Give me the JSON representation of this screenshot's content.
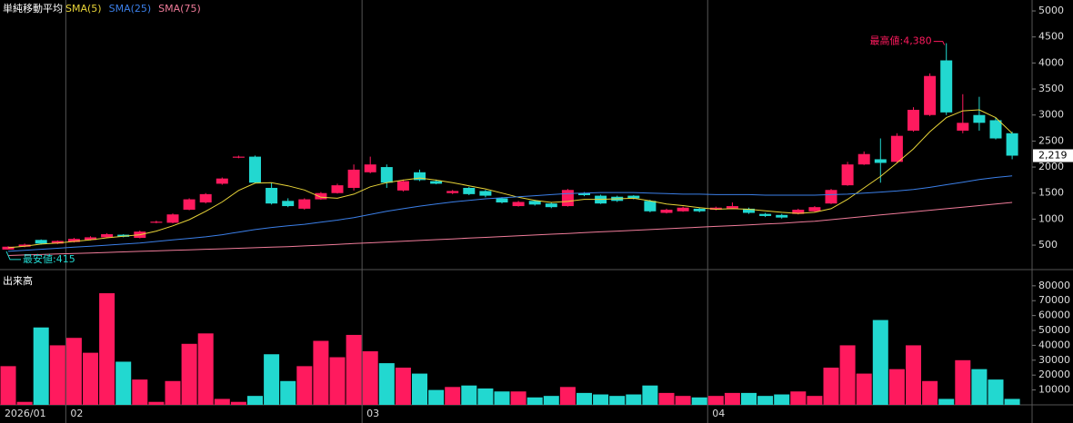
{
  "chart_data": {
    "type": "candlestick",
    "title": "単純移動平均",
    "categories": [
      "2026/01",
      null,
      null,
      null,
      "02",
      null,
      null,
      null,
      null,
      null,
      null,
      null,
      null,
      null,
      null,
      null,
      null,
      null,
      null,
      null,
      null,
      null,
      "03",
      null,
      null,
      null,
      null,
      null,
      null,
      null,
      null,
      null,
      null,
      null,
      null,
      null,
      null,
      null,
      null,
      null,
      null,
      null,
      null,
      "04",
      null,
      null,
      null,
      null,
      null,
      null,
      null,
      null,
      null,
      null,
      null,
      null,
      null,
      null,
      null,
      null,
      null,
      null
    ],
    "open": [
      415,
      470,
      600,
      530,
      560,
      600,
      650,
      700,
      640,
      930,
      930,
      1180,
      1320,
      1680,
      2180,
      2200,
      1600,
      1350,
      1200,
      1380,
      1500,
      1600,
      1900,
      2000,
      1550,
      1900,
      1730,
      1500,
      1600,
      1540,
      1400,
      1250,
      1350,
      1300,
      1250,
      1500,
      1450,
      1430,
      1450,
      1350,
      1120,
      1150,
      1200,
      1180,
      1200,
      1200,
      1100,
      1080,
      1100,
      1150,
      1300,
      1650,
      2050,
      2150,
      2100,
      2700,
      3000,
      4050,
      2700,
      3000,
      2900,
      2650
    ],
    "high": [
      480,
      530,
      610,
      590,
      640,
      670,
      730,
      710,
      780,
      970,
      1110,
      1400,
      1500,
      1800,
      2220,
      2220,
      1700,
      1400,
      1400,
      1520,
      1680,
      2050,
      2200,
      2050,
      1760,
      1950,
      1760,
      1560,
      1620,
      1560,
      1420,
      1350,
      1370,
      1320,
      1580,
      1520,
      1470,
      1450,
      1460,
      1370,
      1200,
      1240,
      1220,
      1240,
      1320,
      1220,
      1120,
      1100,
      1200,
      1250,
      1580,
      2100,
      2300,
      2550,
      2650,
      3150,
      3800,
      4380,
      3400,
      3350,
      2950,
      2680
    ],
    "low": [
      415,
      460,
      510,
      520,
      550,
      590,
      640,
      650,
      630,
      920,
      920,
      1170,
      1300,
      1660,
      2170,
      1690,
      1280,
      1230,
      1180,
      1370,
      1490,
      1550,
      1880,
      1600,
      1530,
      1730,
      1670,
      1480,
      1460,
      1420,
      1300,
      1240,
      1260,
      1210,
      1240,
      1440,
      1290,
      1330,
      1380,
      1130,
      1110,
      1140,
      1130,
      1170,
      1190,
      1100,
      1040,
      1010,
      1090,
      1140,
      1290,
      1640,
      2040,
      1700,
      2090,
      2680,
      2980,
      3000,
      2650,
      2700,
      2530,
      2150
    ],
    "close": [
      470,
      510,
      530,
      580,
      620,
      650,
      710,
      660,
      760,
      950,
      1090,
      1380,
      1480,
      1780,
      2200,
      1700,
      1300,
      1250,
      1380,
      1500,
      1650,
      1950,
      2050,
      1700,
      1730,
      1750,
      1680,
      1540,
      1480,
      1450,
      1320,
      1330,
      1280,
      1230,
      1560,
      1460,
      1300,
      1350,
      1400,
      1150,
      1180,
      1220,
      1150,
      1220,
      1250,
      1120,
      1060,
      1030,
      1180,
      1230,
      1560,
      2050,
      2250,
      2080,
      2600,
      3100,
      3750,
      3050,
      2850,
      2850,
      2550,
      2219
    ],
    "up_color": "#ff1a5e",
    "down_color": "#22d8d0",
    "ylim": [
      30,
      5210
    ],
    "yticks": [
      500,
      1000,
      1500,
      2000,
      2500,
      3000,
      3500,
      4000,
      4500,
      5000
    ],
    "series": [
      {
        "name": "SMA(5)",
        "color": "#e8d438",
        "values": [
          450,
          480,
          520,
          540,
          570,
          600,
          640,
          670,
          700,
          770,
          870,
          990,
          1150,
          1330,
          1550,
          1690,
          1700,
          1640,
          1560,
          1420,
          1400,
          1480,
          1620,
          1700,
          1750,
          1790,
          1750,
          1700,
          1640,
          1580,
          1500,
          1420,
          1360,
          1320,
          1340,
          1380,
          1380,
          1390,
          1400,
          1350,
          1290,
          1260,
          1220,
          1190,
          1200,
          1190,
          1160,
          1130,
          1110,
          1130,
          1200,
          1380,
          1600,
          1820,
          2080,
          2350,
          2680,
          2950,
          3080,
          3100,
          2950,
          2650
        ]
      },
      {
        "name": "SMA(25)",
        "color": "#3b7fe8",
        "values": [
          380,
          400,
          420,
          440,
          460,
          480,
          500,
          520,
          540,
          570,
          600,
          630,
          660,
          700,
          750,
          800,
          840,
          870,
          900,
          940,
          980,
          1030,
          1090,
          1150,
          1200,
          1250,
          1290,
          1330,
          1360,
          1390,
          1410,
          1430,
          1450,
          1470,
          1490,
          1500,
          1510,
          1510,
          1510,
          1500,
          1490,
          1480,
          1480,
          1470,
          1470,
          1470,
          1460,
          1460,
          1460,
          1460,
          1470,
          1480,
          1500,
          1520,
          1540,
          1570,
          1610,
          1660,
          1710,
          1760,
          1800,
          1830
        ]
      },
      {
        "name": "SMA(75)",
        "color": "#f07c9a",
        "values": [
          300,
          310,
          320,
          330,
          340,
          350,
          360,
          370,
          380,
          390,
          400,
          410,
          420,
          430,
          440,
          450,
          460,
          470,
          485,
          500,
          515,
          530,
          545,
          560,
          575,
          590,
          605,
          620,
          635,
          650,
          665,
          680,
          695,
          710,
          725,
          740,
          755,
          770,
          785,
          800,
          815,
          830,
          845,
          860,
          875,
          890,
          905,
          920,
          940,
          960,
          990,
          1020,
          1050,
          1080,
          1110,
          1140,
          1170,
          1200,
          1230,
          1260,
          1290,
          1320
        ]
      }
    ],
    "annotations": {
      "high": "最高値:4,380",
      "low": "最安値:415",
      "last": "2,219"
    },
    "volume": {
      "title": "出来高",
      "values": [
        26000,
        2000,
        52000,
        40000,
        45000,
        35000,
        75000,
        29000,
        17000,
        2000,
        16000,
        41000,
        48000,
        4000,
        2000,
        6000,
        34000,
        16000,
        26000,
        43000,
        32000,
        47000,
        36000,
        28000,
        25000,
        21000,
        10000,
        12000,
        13000,
        11000,
        9000,
        9000,
        5000,
        6000,
        12000,
        8000,
        7000,
        6000,
        7000,
        13000,
        8000,
        6000,
        5000,
        6000,
        8000,
        8000,
        6000,
        7000,
        9000,
        6000,
        25000,
        40000,
        21000,
        57000,
        24000,
        40000,
        16000,
        4000,
        30000,
        24000,
        17000,
        4000
      ],
      "ylim": [
        0,
        86000
      ],
      "yticks": [
        10000,
        20000,
        30000,
        40000,
        50000,
        60000,
        70000,
        80000
      ]
    }
  }
}
